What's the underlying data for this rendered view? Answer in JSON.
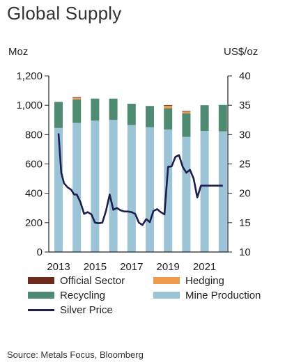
{
  "title": "Global Supply",
  "source": "Source: Metals Focus, Bloomberg",
  "chart_data": {
    "type": "bar",
    "stacked": true,
    "categories": [
      "2013",
      "2014",
      "2015",
      "2016",
      "2017",
      "2018",
      "2019",
      "2020",
      "2021",
      "2022"
    ],
    "y_left_label": "Moz",
    "y_right_label": "US$/oz",
    "ylim_left": [
      0,
      1200
    ],
    "ylim_right": [
      10,
      40
    ],
    "y_left_ticks": [
      "0",
      "200",
      "400",
      "600",
      "800",
      "1,000",
      "1,200"
    ],
    "y_right_ticks": [
      "10",
      "15",
      "20",
      "25",
      "30",
      "35",
      "40"
    ],
    "x_tick_labels": [
      "2013",
      "2015",
      "2017",
      "2019",
      "2021"
    ],
    "series": [
      {
        "name": "Mine Production",
        "color": "#9dc3d6",
        "values": [
          845,
          880,
          895,
          900,
          865,
          850,
          835,
          785,
          825,
          822
        ]
      },
      {
        "name": "Recycling",
        "color": "#4f8a72",
        "values": [
          178,
          160,
          150,
          145,
          145,
          145,
          145,
          160,
          175,
          180
        ]
      },
      {
        "name": "Hedging",
        "color": "#ef9a4b",
        "values": [
          0,
          15,
          0,
          0,
          0,
          0,
          20,
          15,
          0,
          0
        ]
      },
      {
        "name": "Official Sector",
        "color": "#6b2a1a",
        "values": [
          0,
          1,
          0,
          0,
          0,
          0,
          1,
          1,
          0,
          0
        ]
      }
    ],
    "line": {
      "name": "Silver Price",
      "color": "#1c1f4e",
      "axis": "right",
      "x": [
        2013.0,
        2013.15,
        2013.3,
        2013.5,
        2013.7,
        2013.85,
        2014.0,
        2014.2,
        2014.4,
        2014.6,
        2014.8,
        2015.0,
        2015.2,
        2015.4,
        2015.6,
        2015.8,
        2016.0,
        2016.2,
        2016.4,
        2016.6,
        2016.8,
        2017.0,
        2017.2,
        2017.4,
        2017.6,
        2017.8,
        2018.0,
        2018.2,
        2018.4,
        2018.6,
        2018.8,
        2019.0,
        2019.2,
        2019.4,
        2019.6,
        2019.8,
        2020.0,
        2020.2,
        2020.4,
        2020.6,
        2020.8,
        2021.0,
        2021.2,
        2021.4,
        2021.6,
        2021.8,
        2022.0
      ],
      "values": [
        30.2,
        23.5,
        21.7,
        21.0,
        20.6,
        19.8,
        19.8,
        18.5,
        16.5,
        16.8,
        16.4,
        15.0,
        14.9,
        15.0,
        17.0,
        19.8,
        17.2,
        17.5,
        17.1,
        16.9,
        16.9,
        16.8,
        16.5,
        15.0,
        14.6,
        15.6,
        15.1,
        17.0,
        17.3,
        16.8,
        16.4,
        24.5,
        24.6,
        26.2,
        26.5,
        24.5,
        23.5,
        24.0,
        22.5,
        19.3,
        21.3,
        21.3,
        21.3,
        21.3,
        21.3,
        21.3,
        21.3
      ]
    }
  }
}
